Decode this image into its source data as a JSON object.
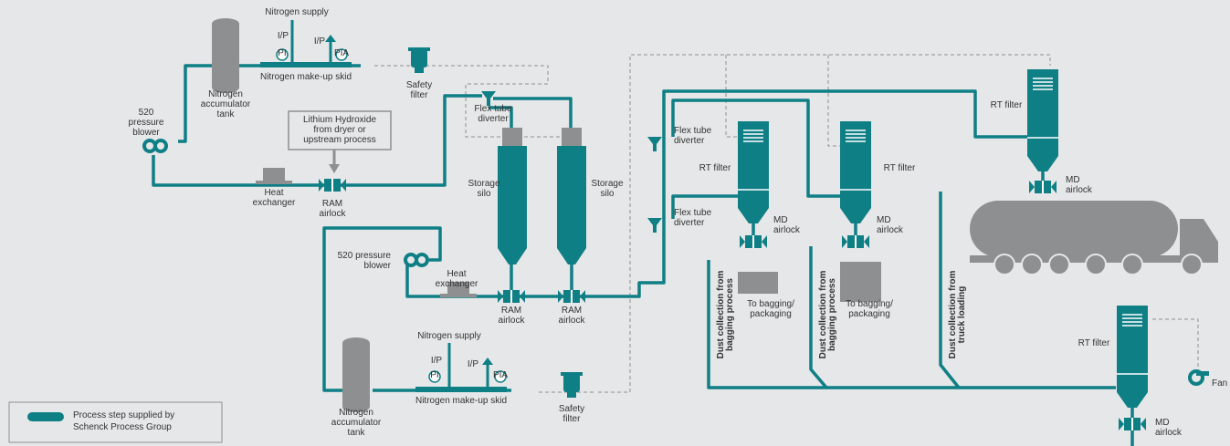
{
  "nodes": [
    {
      "label": [
        "Nitrogen supply"
      ]
    },
    {
      "label": [
        "I/P"
      ]
    },
    {
      "label": [
        "I/P"
      ]
    },
    {
      "label": [
        "PI"
      ]
    },
    {
      "label": [
        "PIA"
      ]
    },
    {
      "label": [
        "Nitrogen make-up skid"
      ]
    },
    {
      "label": [
        "Nitrogen",
        "accumulator",
        "tank"
      ]
    },
    {
      "label": [
        "Safety",
        "filter"
      ]
    },
    {
      "label": [
        "520",
        "pressure",
        "blower"
      ]
    },
    {
      "label": [
        "Lithium Hydroxide",
        "from dryer or",
        "upstream process"
      ]
    },
    {
      "label": [
        "Heat",
        "exchanger"
      ]
    },
    {
      "label": [
        "RAM",
        "airlock"
      ]
    },
    {
      "label": [
        "Flex tube",
        "diverter"
      ]
    },
    {
      "label": [
        "Storage",
        "silo"
      ]
    },
    {
      "label": [
        "Storage",
        "silo"
      ]
    },
    {
      "label": [
        "520 pressure",
        "blower"
      ]
    },
    {
      "label": [
        "Heat",
        "exchanger"
      ]
    },
    {
      "label": [
        "RAM",
        "airlock"
      ]
    },
    {
      "label": [
        "RAM",
        "airlock"
      ]
    },
    {
      "label": [
        "Nitrogen supply"
      ]
    },
    {
      "label": [
        "I/P"
      ]
    },
    {
      "label": [
        "I/P"
      ]
    },
    {
      "label": [
        "PI"
      ]
    },
    {
      "label": [
        "PIA"
      ]
    },
    {
      "label": [
        "Nitrogen make-up skid"
      ]
    },
    {
      "label": [
        "Nitrogen",
        "accumulator",
        "tank"
      ]
    },
    {
      "label": [
        "Safety",
        "filter"
      ]
    },
    {
      "label": [
        "Flex tube",
        "diverter"
      ]
    },
    {
      "label": [
        "Flex tube",
        "diverter"
      ]
    },
    {
      "label": [
        "RT filter"
      ]
    },
    {
      "label": [
        "MD",
        "airlock"
      ]
    },
    {
      "label": [
        "To bagging/",
        "packaging"
      ]
    },
    {
      "label": [
        "RT filter"
      ]
    },
    {
      "label": [
        "MD",
        "airlock"
      ]
    },
    {
      "label": [
        "To bagging/",
        "packaging"
      ]
    },
    {
      "label": [
        "RT filter"
      ]
    },
    {
      "label": [
        "MD",
        "airlock"
      ]
    },
    {
      "label": [
        "RT filter"
      ]
    },
    {
      "label": [
        "Fan"
      ]
    },
    {
      "label": [
        "MD",
        "airlock"
      ]
    },
    {
      "label": [
        "Dust collection from",
        "bagging process"
      ]
    },
    {
      "label": [
        "Dust collection from",
        "bagging process"
      ]
    },
    {
      "label": [
        "Dust collection from",
        "truck loading"
      ]
    }
  ],
  "legend": {
    "label": [
      "Process step supplied by",
      "Schenck Process Group"
    ]
  }
}
